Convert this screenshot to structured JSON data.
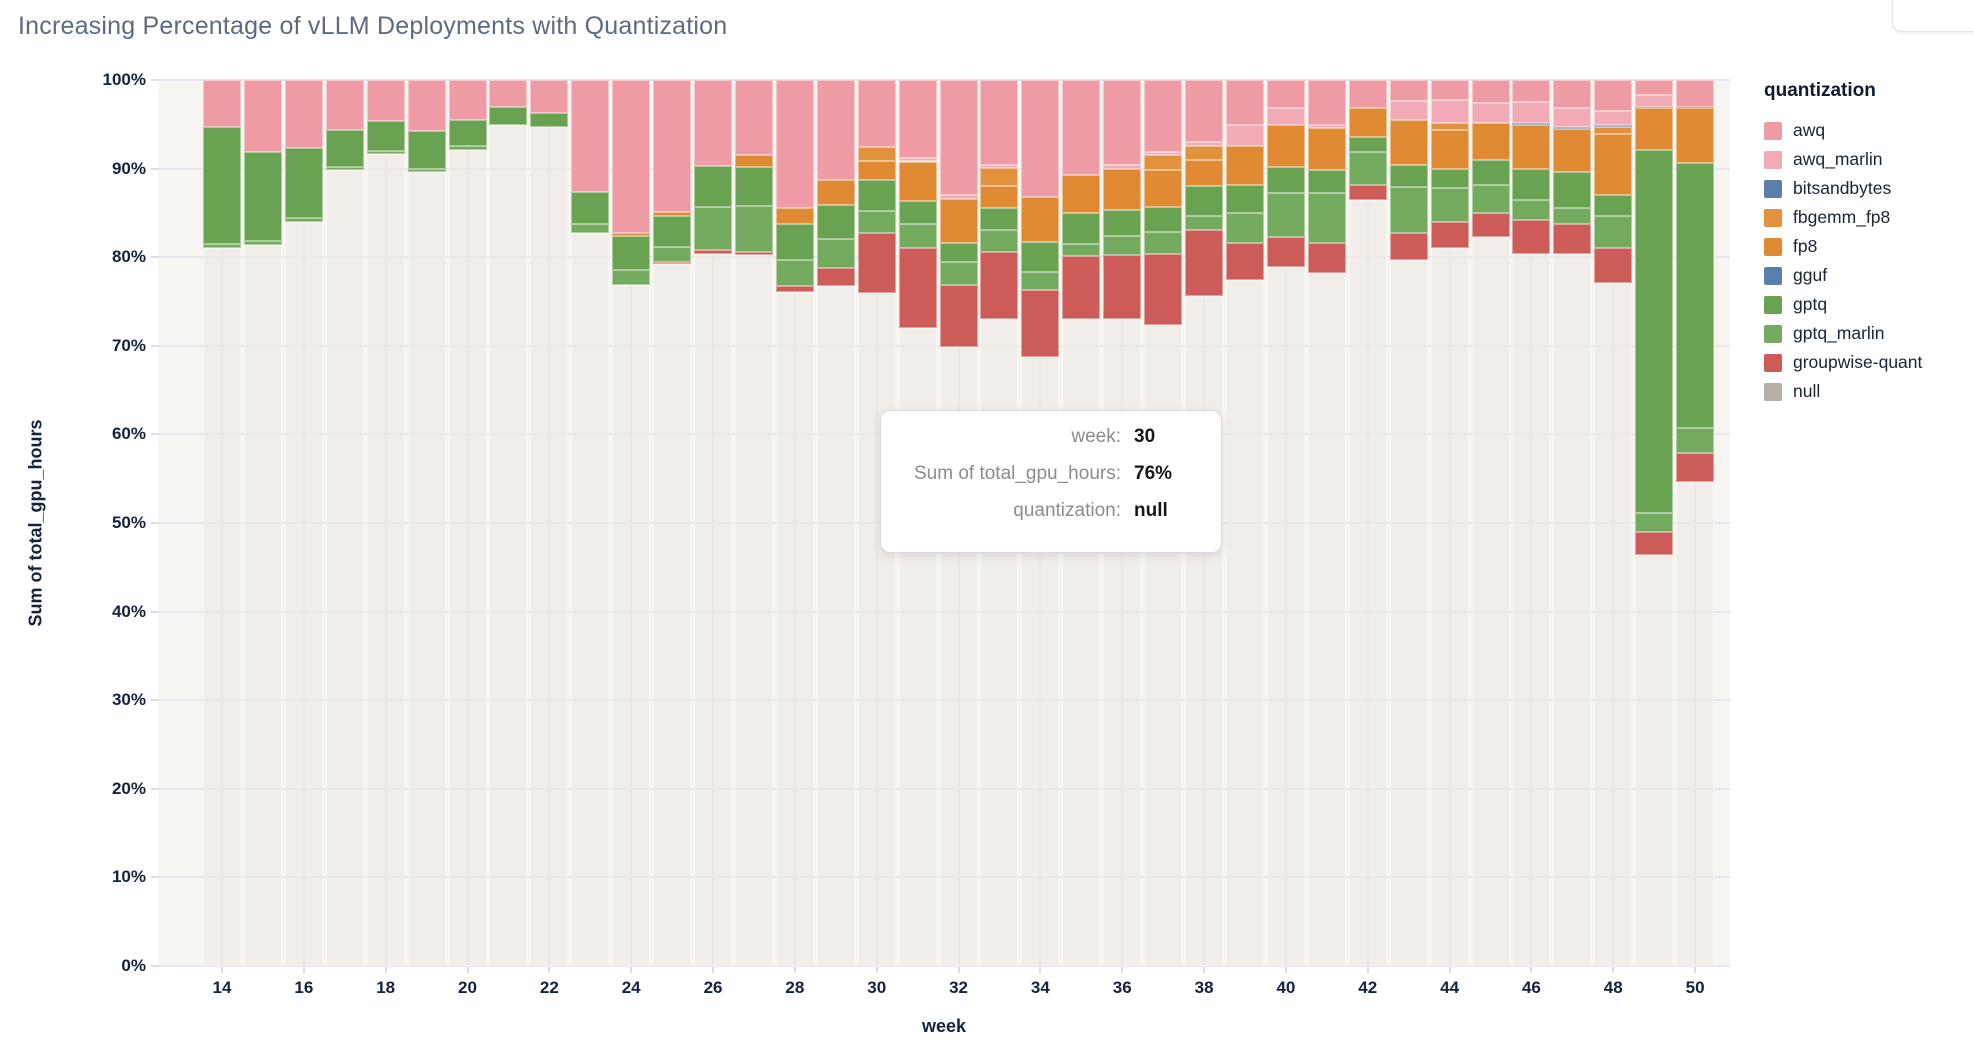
{
  "title": "Increasing Percentage of vLLM Deployments with Quantization",
  "legend": {
    "title": "quantization",
    "items": [
      {
        "label": "awq",
        "color": "#ef9ba5"
      },
      {
        "label": "awq_marlin",
        "color": "#f2abb6"
      },
      {
        "label": "bitsandbytes",
        "color": "#5b7fad"
      },
      {
        "label": "fbgemm_fp8",
        "color": "#e2923d"
      },
      {
        "label": "fp8",
        "color": "#df8a33"
      },
      {
        "label": "gguf",
        "color": "#5b7fad"
      },
      {
        "label": "gptq",
        "color": "#69a352"
      },
      {
        "label": "gptq_marlin",
        "color": "#74aa5d"
      },
      {
        "label": "groupwise-quant",
        "color": "#cd5b57"
      },
      {
        "label": "null",
        "color": "#b6aea9"
      }
    ]
  },
  "tooltip": {
    "rows": [
      {
        "label": "week:",
        "value": "30"
      },
      {
        "label": "Sum of total_gpu_hours:",
        "value": "76%"
      },
      {
        "label": "quantization:",
        "value": "null"
      }
    ]
  },
  "chart_data": {
    "type": "bar",
    "subtype": "stacked-percent",
    "title": "Increasing Percentage of vLLM Deployments with Quantization",
    "xlabel": "week",
    "ylabel": "Sum of total_gpu_hours",
    "ylim": [
      0,
      100
    ],
    "grid": true,
    "legend_position": "right",
    "x": [
      14,
      15,
      16,
      17,
      18,
      19,
      20,
      21,
      22,
      23,
      24,
      25,
      26,
      27,
      28,
      29,
      30,
      31,
      32,
      33,
      34,
      35,
      36,
      37,
      38,
      39,
      40,
      41,
      42,
      43,
      44,
      45,
      46,
      47,
      48,
      49,
      50
    ],
    "x_ticks": [
      14,
      16,
      18,
      20,
      22,
      24,
      26,
      28,
      30,
      32,
      34,
      36,
      38,
      40,
      42,
      44,
      46,
      48,
      50
    ],
    "y_ticks": [
      "0%",
      "10%",
      "20%",
      "30%",
      "40%",
      "50%",
      "60%",
      "70%",
      "80%",
      "90%",
      "100%"
    ],
    "stack_order": "bottom to top",
    "series": [
      {
        "name": "null",
        "color": "rgba(236,231,225,0.55)",
        "values": [
          81.0,
          81.4,
          84.0,
          89.8,
          91.7,
          89.6,
          92.1,
          94.9,
          94.7,
          82.7,
          76.9,
          79.2,
          80.4,
          80.2,
          76.1,
          76.7,
          76.0,
          72.0,
          69.9,
          73.0,
          68.7,
          73.0,
          73.0,
          72.3,
          75.6,
          77.4,
          78.9,
          78.2,
          86.5,
          79.7,
          81.0,
          82.3,
          80.4,
          80.4,
          77.1,
          46.4,
          54.6
        ]
      },
      {
        "name": "groupwise-quant",
        "color": "#cd5b57",
        "values": [
          0,
          0,
          0,
          0,
          0,
          0,
          0,
          0,
          0,
          0,
          0,
          0.3,
          0.4,
          0.4,
          0.6,
          2.1,
          6.7,
          9.0,
          7.0,
          7.6,
          7.6,
          7.1,
          7.3,
          8.1,
          7.5,
          4.2,
          3.4,
          3.4,
          1.7,
          3.0,
          3.0,
          2.7,
          3.8,
          3.4,
          3.9,
          2.6,
          3.3
        ]
      },
      {
        "name": "gptq_marlin",
        "color": "#74aa5d",
        "values": [
          0.5,
          0.4,
          0.4,
          0.4,
          0.3,
          0.4,
          0.4,
          0,
          0,
          1.1,
          1.6,
          1.7,
          4.9,
          5.2,
          3.0,
          3.2,
          2.5,
          2.8,
          2.6,
          2.5,
          2.0,
          1.4,
          2.1,
          2.4,
          1.6,
          3.4,
          4.9,
          5.6,
          3.7,
          5.2,
          3.8,
          3.2,
          2.3,
          1.7,
          3.6,
          2.1,
          2.8
        ]
      },
      {
        "name": "gptq",
        "color": "#69a352",
        "values": [
          13.2,
          10.1,
          7.9,
          4.2,
          3.4,
          4.2,
          3.0,
          2.1,
          1.6,
          3.6,
          3.9,
          3.5,
          4.6,
          4.4,
          4.0,
          3.9,
          3.5,
          2.5,
          2.1,
          2.4,
          3.4,
          3.5,
          2.9,
          2.9,
          3.3,
          3.2,
          3.0,
          2.6,
          1.7,
          2.5,
          2.1,
          2.8,
          3.4,
          4.1,
          2.4,
          41.0,
          29.9
        ]
      },
      {
        "name": "gguf",
        "color": "#5b7fad",
        "values": [
          0,
          0,
          0,
          0,
          0,
          0,
          0,
          0,
          0,
          0,
          0,
          0,
          0,
          0,
          0,
          0,
          0,
          0,
          0,
          0,
          0,
          0,
          0,
          0,
          0,
          0,
          0,
          0,
          0,
          0,
          0,
          0,
          0,
          0,
          0,
          0,
          0
        ]
      },
      {
        "name": "fp8",
        "color": "#df8a33",
        "values": [
          0,
          0,
          0,
          0,
          0,
          0,
          0,
          0,
          0,
          0,
          0.3,
          0.4,
          0,
          1.3,
          1.8,
          2.8,
          2.2,
          4.5,
          5.0,
          2.5,
          5.1,
          4.3,
          4.6,
          4.1,
          3.0,
          4.3,
          4.7,
          4.8,
          3.2,
          5.1,
          4.5,
          4.1,
          5.0,
          4.9,
          6.9,
          4.7,
          6.2
        ]
      },
      {
        "name": "fbgemm_fp8",
        "color": "#e2923d",
        "values": [
          0,
          0,
          0,
          0,
          0,
          0,
          0,
          0,
          0,
          0,
          0,
          0,
          0,
          0,
          0,
          0,
          1.5,
          0,
          0,
          2.1,
          0,
          0,
          0,
          1.7,
          1.5,
          0,
          0,
          0,
          0,
          0,
          0.7,
          0,
          0,
          0,
          0.8,
          0,
          0
        ]
      },
      {
        "name": "bitsandbytes",
        "color": "#5b7fad",
        "values": [
          0,
          0,
          0,
          0,
          0,
          0,
          0,
          0,
          0,
          0,
          0,
          0,
          0,
          0,
          0,
          0,
          0,
          0,
          0,
          0,
          0,
          0,
          0,
          0,
          0,
          0,
          0,
          0,
          0,
          0,
          0,
          0,
          0.2,
          0.2,
          0.2,
          0.2,
          0.2
        ]
      },
      {
        "name": "awq_marlin",
        "color": "#f2abb6",
        "values": [
          0,
          0,
          0,
          0,
          0,
          0,
          0,
          0,
          0,
          0,
          0,
          0,
          0,
          0,
          0,
          0,
          0,
          0.4,
          0.4,
          0.3,
          0,
          0,
          0.5,
          0.4,
          0.5,
          2.4,
          1.9,
          0.3,
          0,
          2.1,
          2.6,
          2.3,
          2.4,
          2.1,
          1.6,
          1.3,
          0
        ]
      },
      {
        "name": "awq",
        "color": "#ef9ba5",
        "values": [
          5.3,
          8.1,
          7.7,
          5.6,
          4.6,
          5.8,
          4.5,
          3.0,
          3.7,
          12.6,
          17.3,
          14.9,
          9.7,
          8.5,
          14.5,
          11.3,
          7.6,
          8.8,
          13.0,
          9.6,
          13.2,
          10.7,
          9.6,
          8.1,
          7.0,
          5.1,
          3.2,
          5.1,
          3.2,
          2.4,
          2.3,
          2.6,
          2.5,
          3.2,
          3.5,
          1.7,
          3.0
        ]
      }
    ]
  }
}
